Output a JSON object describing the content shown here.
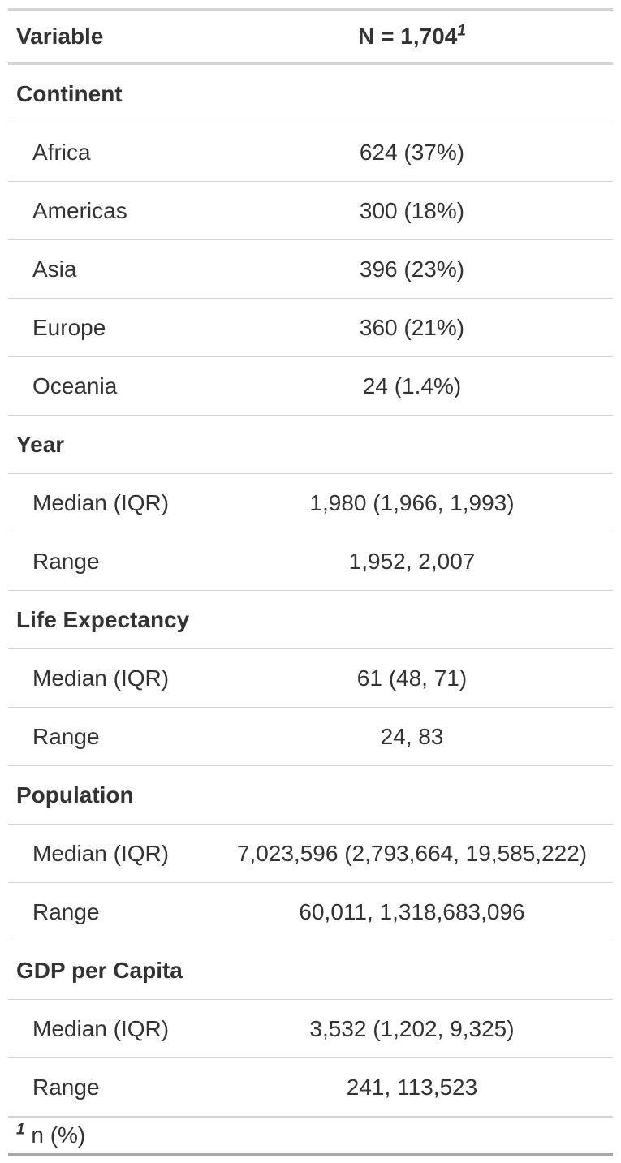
{
  "header": {
    "variable_label": "Variable",
    "n_label": "N = 1,704",
    "n_footnote_mark": "1"
  },
  "groups": [
    {
      "label": "Continent",
      "rows": [
        {
          "label": "Africa",
          "value": "624 (37%)"
        },
        {
          "label": "Americas",
          "value": "300 (18%)"
        },
        {
          "label": "Asia",
          "value": "396 (23%)"
        },
        {
          "label": "Europe",
          "value": "360 (21%)"
        },
        {
          "label": "Oceania",
          "value": "24 (1.4%)"
        }
      ]
    },
    {
      "label": "Year",
      "rows": [
        {
          "label": "Median (IQR)",
          "value": "1,980 (1,966, 1,993)"
        },
        {
          "label": "Range",
          "value": "1,952, 2,007"
        }
      ]
    },
    {
      "label": "Life Expectancy",
      "rows": [
        {
          "label": "Median (IQR)",
          "value": "61 (48, 71)"
        },
        {
          "label": "Range",
          "value": "24, 83"
        }
      ]
    },
    {
      "label": "Population",
      "rows": [
        {
          "label": "Median (IQR)",
          "value": "7,023,596 (2,793,664, 19,585,222)"
        },
        {
          "label": "Range",
          "value": "60,011, 1,318,683,096"
        }
      ]
    },
    {
      "label": "GDP per Capita",
      "rows": [
        {
          "label": "Median (IQR)",
          "value": "3,532 (1,202, 9,325)"
        },
        {
          "label": "Range",
          "value": "241, 113,523"
        }
      ]
    }
  ],
  "footnote": {
    "mark": "1",
    "text": " n (%)"
  }
}
